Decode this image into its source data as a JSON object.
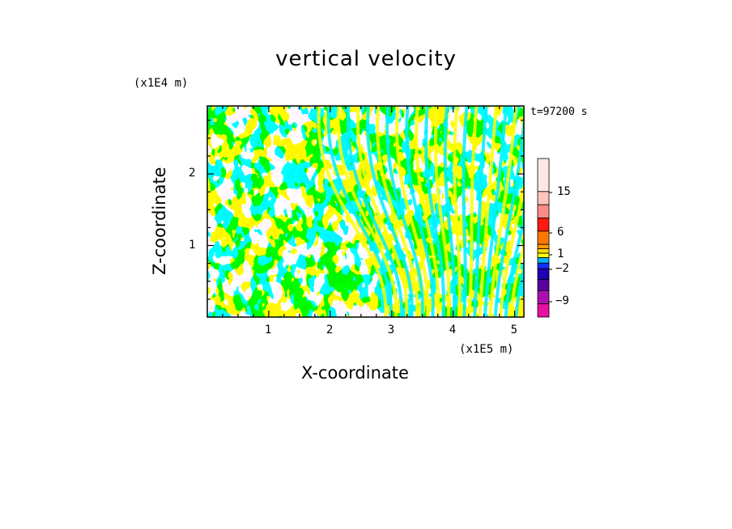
{
  "chart_data": {
    "type": "heatmap",
    "title": "vertical velocity",
    "xlabel": "X-coordinate",
    "ylabel": "Z-coordinate",
    "x_unit": "(x1E5 m)",
    "y_unit": "(x1E4 m)",
    "time_label": "t=97200 s",
    "xlim": [
      0,
      5.15
    ],
    "ylim": [
      0,
      2.95
    ],
    "x_ticks": [
      "1",
      "2",
      "3",
      "4",
      "5"
    ],
    "y_ticks": [
      "1",
      "2"
    ],
    "field_colors": {
      "positive": "#ffff00",
      "negative": "#00eeff"
    },
    "colorbar": {
      "labels": [
        "15",
        "6",
        "1",
        "-2",
        "-9"
      ],
      "colors": [
        "#ffe8e4",
        "#ffc4bc",
        "#ff8c84",
        "#ff1a10",
        "#ff7700",
        "#ff9a00",
        "#ffdc00",
        "#ffff00",
        "#00b0ff",
        "#1030ff",
        "#2000b0",
        "#5a00a0",
        "#aa10b0",
        "#e810a0"
      ]
    }
  }
}
